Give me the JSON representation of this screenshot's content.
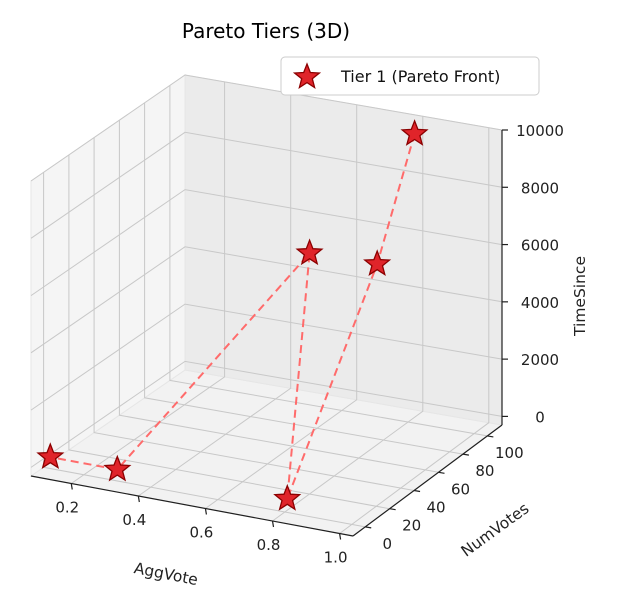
{
  "chart_data": {
    "type": "scatter3d",
    "title": "Pareto Tiers (3D)",
    "xlabel": "AggVote",
    "ylabel": "NumVotes",
    "zlabel": "TimeSince",
    "xlim": [
      0.08,
      1.04
    ],
    "ylim": [
      -10,
      112
    ],
    "zlim": [
      -300,
      10000
    ],
    "xticks": [
      0.2,
      0.4,
      0.6,
      0.8,
      1.0
    ],
    "xtick_labels": [
      "0.2",
      "0.4",
      "0.6",
      "0.8",
      "1.0"
    ],
    "yticks": [
      0,
      20,
      40,
      60,
      80,
      100
    ],
    "ytick_labels": [
      "0",
      "20",
      "40",
      "60",
      "80",
      "100"
    ],
    "zticks": [
      0,
      2000,
      4000,
      6000,
      8000,
      10000
    ],
    "ztick_labels": [
      "0",
      "2000",
      "4000",
      "6000",
      "8000",
      "10000"
    ],
    "grid": true,
    "legend_position": "top-right",
    "series": [
      {
        "name": "Tier 1 (Pareto Front)",
        "marker": "star",
        "color": "#e0242a",
        "edge_color": "#8b0000",
        "line_color": "#ff6b6b",
        "line_style": "dashed",
        "points": [
          {
            "x": 0.82,
            "y": 100,
            "z": 9800
          },
          {
            "x": 0.8,
            "y": 75,
            "z": 6000
          },
          {
            "x": 0.8,
            "y": 2,
            "z": 100
          },
          {
            "x": 0.6,
            "y": 74,
            "z": 6000
          },
          {
            "x": 0.3,
            "y": 0,
            "z": 100
          },
          {
            "x": 0.1,
            "y": 0,
            "z": 100
          }
        ]
      }
    ]
  }
}
